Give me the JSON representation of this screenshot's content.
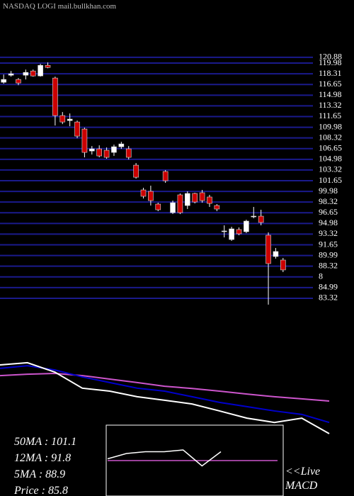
{
  "chart_data": {
    "type": "candlestick",
    "title": "NASDAQ LOGI mail.bullkhan.com",
    "categories": [
      null,
      null,
      null,
      null,
      null,
      null,
      null,
      null,
      null,
      null,
      null,
      null,
      null,
      null,
      null,
      null,
      null,
      null,
      null,
      null,
      null,
      null,
      null,
      null,
      null,
      null,
      null,
      null,
      null,
      null,
      null,
      null,
      null,
      null,
      null,
      null,
      null,
      null,
      null
    ],
    "open": [
      116.99,
      118.09,
      117.43,
      118.09,
      118.75,
      117.98,
      119.63,
      117.65,
      111.8,
      111.02,
      110.8,
      109.7,
      106.28,
      106.61,
      106.39,
      106.06,
      106.94,
      106.61,
      104.07,
      100.21,
      99.99,
      98.0,
      103.08,
      96.67,
      99.44,
      97.78,
      99.66,
      99.77,
      99.11,
      97.78,
      93.7,
      92.48,
      94.03,
      93.7,
      96.01,
      96.12,
      93.15,
      89.83,
      89.28
    ],
    "high": [
      118.2,
      118.75,
      117.65,
      118.97,
      118.97,
      119.86,
      120.08,
      117.87,
      112.35,
      112.13,
      111.02,
      109.92,
      107.05,
      107.16,
      106.83,
      107.27,
      107.71,
      107.05,
      104.4,
      100.54,
      100.87,
      98.22,
      103.3,
      98.55,
      99.66,
      99.99,
      99.77,
      100.21,
      99.44,
      98.0,
      94.69,
      94.47,
      94.36,
      95.57,
      97.56,
      97.12,
      93.59,
      91.16,
      89.61
    ],
    "low": [
      116.77,
      117.87,
      116.54,
      117.43,
      117.87,
      117.87,
      119.19,
      110.25,
      110.47,
      110.14,
      108.27,
      105.29,
      105.73,
      105.29,
      105.07,
      105.51,
      106.61,
      104.95,
      101.97,
      98.88,
      97.78,
      96.9,
      101.31,
      96.45,
      96.45,
      97.23,
      98.11,
      98.22,
      97.56,
      96.9,
      92.81,
      92.26,
      93.15,
      93.48,
      95.79,
      94.69,
      82.33,
      89.5,
      87.4
    ],
    "close": [
      117.43,
      118.31,
      116.88,
      118.53,
      117.98,
      119.63,
      119.3,
      111.8,
      110.8,
      111.25,
      108.6,
      106.06,
      106.61,
      105.51,
      105.29,
      106.94,
      107.38,
      105.29,
      102.19,
      99.22,
      98.55,
      97.12,
      101.64,
      98.22,
      96.67,
      99.66,
      98.33,
      98.55,
      98.11,
      97.23,
      93.81,
      94.14,
      93.37,
      95.35,
      96.12,
      95.14,
      88.73,
      90.61,
      87.74
    ],
    "up_color": "#ffffff",
    "down_color": "#cc0000",
    "grid_color": "#1a1a8c",
    "ylim": [
      82.1,
      121.2
    ],
    "yticks": [
      120.88,
      119.98,
      118.31,
      116.65,
      114.98,
      113.32,
      111.65,
      109.98,
      108.32,
      106.65,
      104.98,
      103.32,
      101.65,
      99.98,
      98.32,
      96.65,
      94.98,
      93.32,
      91.65,
      89.99,
      88.32,
      {
        "value": 86.65,
        "label": "8"
      },
      84.99,
      83.32
    ],
    "grid": true,
    "ma_ylim": [
      80,
      125
    ],
    "ma_series": [
      {
        "name": "50MA",
        "color": "#cc55cc",
        "values": [
          109.1,
          109.6,
          109.9,
          109.1,
          107.8,
          106.5,
          105.1,
          104.3,
          103.3,
          102.2,
          101.2,
          100.4,
          99.6
        ]
      },
      {
        "name": "12MA",
        "color": "#0000cc",
        "values": [
          111.8,
          112.8,
          111.2,
          108.6,
          106.5,
          104.4,
          103.3,
          101.2,
          99.1,
          97.5,
          95.9,
          94.6,
          91.6
        ]
      },
      {
        "name": "5MA",
        "color": "#ffffff",
        "values": [
          113.1,
          113.9,
          110.4,
          104.4,
          103.3,
          101.2,
          99.9,
          98.5,
          95.9,
          93.2,
          91.6,
          93.2,
          87.4
        ]
      }
    ],
    "macd_ylim": [
      -2,
      2
    ],
    "macd_series": [
      {
        "color": "#cc55cc",
        "values": [
          0.0,
          0.0,
          0.0,
          0.0,
          0.0,
          0.0,
          0.0,
          0.0,
          0.0,
          0.0
        ]
      },
      {
        "color": "#ffffff",
        "values": [
          0.1,
          0.4,
          0.5,
          0.5,
          0.6,
          -0.3,
          0.5
        ]
      }
    ],
    "labels": [
      "50MA : 101.1",
      "12MA : 91.8",
      "5MA : 88.9",
      "Price  : 85.8"
    ],
    "live": [
      "<<Live",
      "MACD"
    ]
  }
}
